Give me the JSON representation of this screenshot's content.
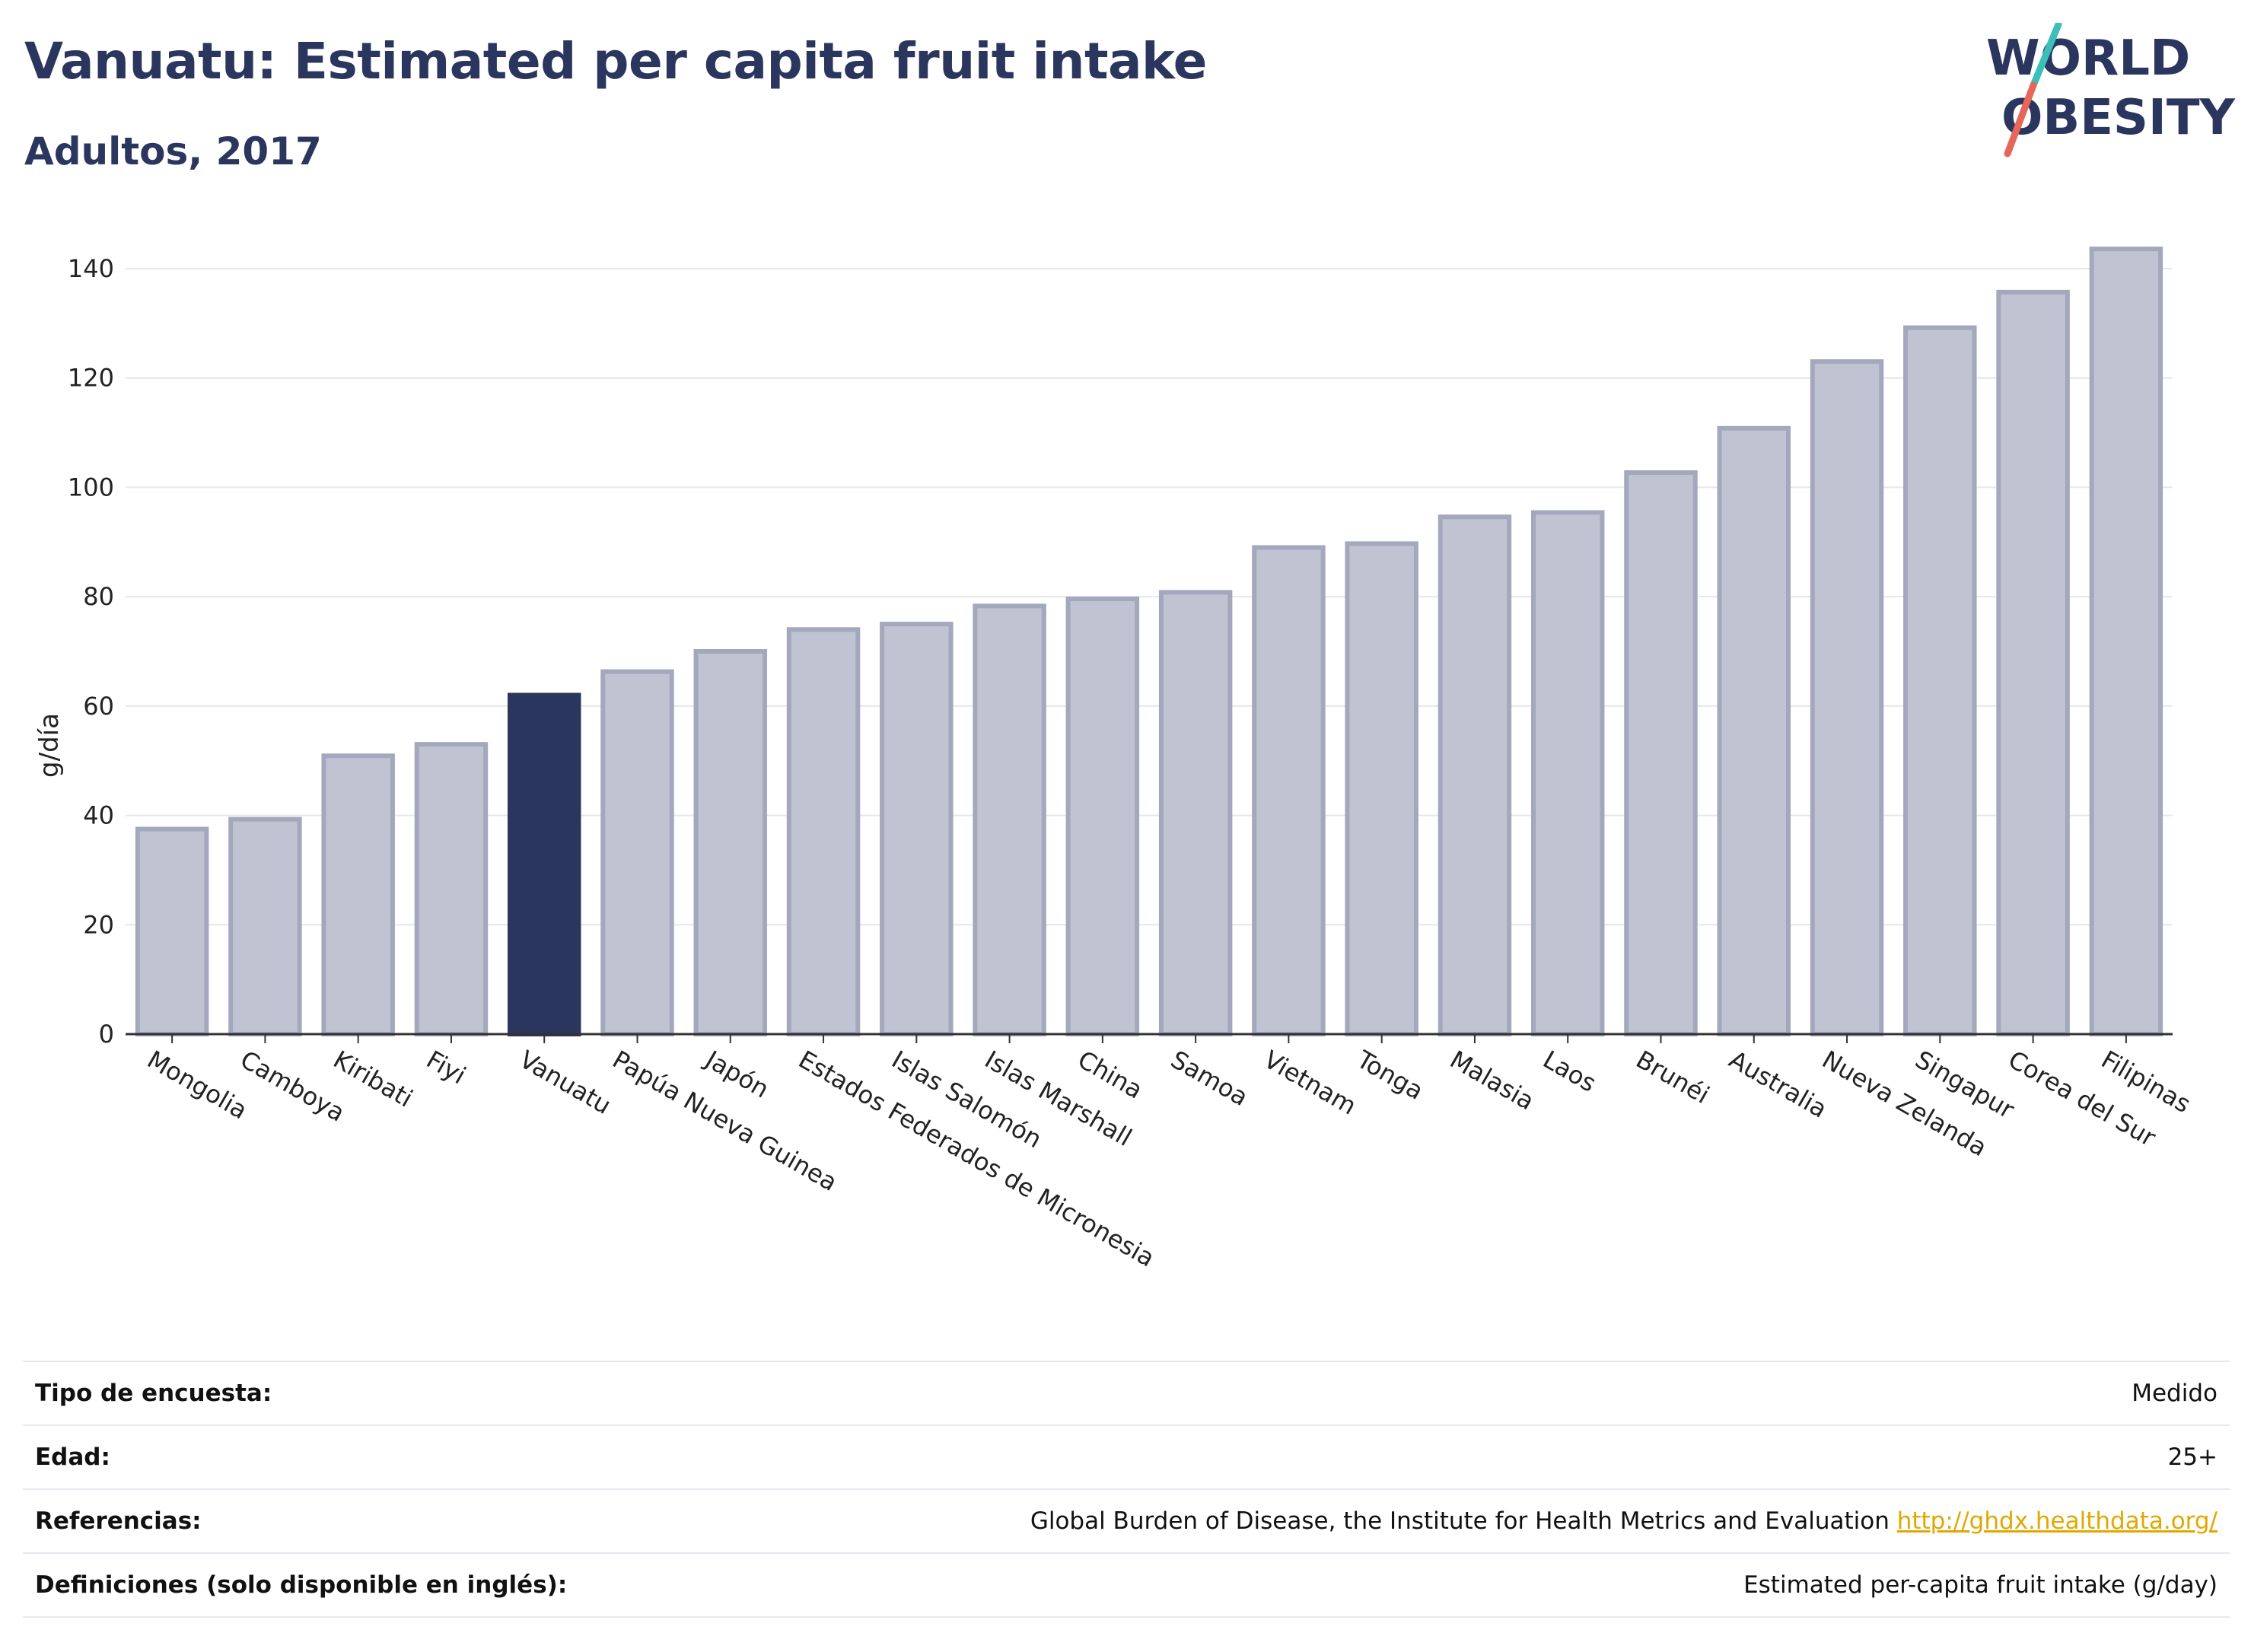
{
  "header": {
    "title": "Vanuatu: Estimated per capita fruit intake",
    "subtitle": "Adultos, 2017"
  },
  "logo": {
    "line1": "WORLD",
    "line2": "OBESITY",
    "colors": {
      "slash_top": "#3bbfb9",
      "slash_bottom": "#e4675a",
      "text": "#2b365f"
    }
  },
  "chart_data": {
    "type": "bar",
    "title": "Vanuatu: Estimated per capita fruit intake",
    "subtitle": "Adultos, 2017",
    "ylabel": "g/día",
    "xlabel": "",
    "ylim": [
      0,
      150
    ],
    "yticks": [
      0,
      20,
      40,
      60,
      80,
      100,
      120,
      140
    ],
    "grid": true,
    "highlight": "Vanuatu",
    "colors": {
      "bar": "#c0c3d1",
      "bar_edge": "#a3a8bd",
      "highlight": "#2b365f",
      "grid": "#e6e7ec"
    },
    "categories": [
      "Mongolia",
      "Camboya",
      "Kiribati",
      "Fiyi",
      "Vanuatu",
      "Papúa Nueva Guinea",
      "Japón",
      "Estados Federados de Micronesia",
      "Islas Salomón",
      "Islas Marshall",
      "China",
      "Samoa",
      "Vietnam",
      "Tonga",
      "Malasia",
      "Laos",
      "Brunéi",
      "Australia",
      "Nueva Zelanda",
      "Singapur",
      "Corea del Sur",
      "Filipinas"
    ],
    "values": [
      37.5,
      39.3,
      50.9,
      53.0,
      62.0,
      66.3,
      70.0,
      74.0,
      75.0,
      78.3,
      79.6,
      80.8,
      89.0,
      89.7,
      94.6,
      95.4,
      102.7,
      110.8,
      123.0,
      129.2,
      135.7,
      143.6
    ]
  },
  "meta": {
    "rows": [
      {
        "key": "Tipo de encuesta:",
        "value": "Medido"
      },
      {
        "key": "Edad:",
        "value": "25+"
      },
      {
        "key": "Referencias:",
        "value": "Global Burden of Disease, the Institute for Health Metrics and Evaluation",
        "link": "http://ghdx.healthdata.org/"
      },
      {
        "key": "Definiciones (solo disponible en inglés):",
        "value": "Estimated per-capita fruit intake (g/day)"
      }
    ]
  }
}
